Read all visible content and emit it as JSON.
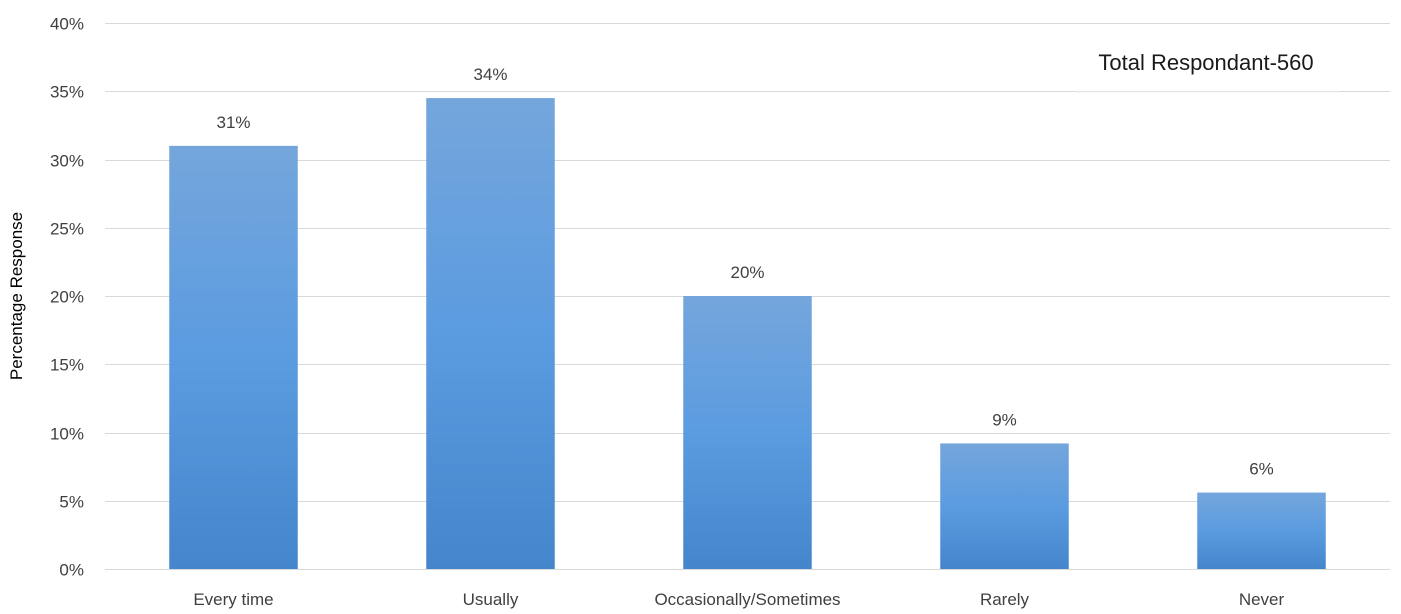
{
  "chart_data": {
    "type": "bar",
    "categories": [
      "Every time",
      "Usually",
      "Occasionally/Sometimes",
      "Rarely",
      "Never"
    ],
    "values": [
      31,
      34.5,
      20,
      9.2,
      5.6
    ],
    "data_labels": [
      "31%",
      "34%",
      "20%",
      "9%",
      "6%"
    ],
    "title": "",
    "xlabel": "",
    "ylabel": "Percentage Response",
    "ylim": [
      0,
      40
    ],
    "yticks": [
      0,
      5,
      10,
      15,
      20,
      25,
      30,
      35,
      40
    ],
    "ytick_labels": [
      "0%",
      "5%",
      "10%",
      "15%",
      "20%",
      "25%",
      "30%",
      "35%",
      "40%"
    ],
    "grid": true,
    "annotation": "Total Respondant-560",
    "colors": {
      "bar_top": "#74a6dc",
      "bar_bottom": "#4585cb",
      "grid": "#d9d9d9"
    }
  }
}
